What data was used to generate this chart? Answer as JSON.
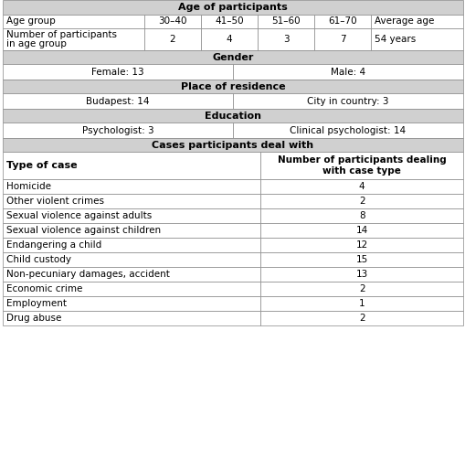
{
  "title": "Age of participants",
  "header_bg": "#d0d0d0",
  "white_bg": "#ffffff",
  "text_color": "#000000",
  "age_groups": [
    "30–40",
    "41–50",
    "51–60",
    "61–70",
    "Average age"
  ],
  "age_counts": [
    "2",
    "4",
    "3",
    "7",
    "54 years"
  ],
  "age_label_row1": "Number of participants",
  "age_label_row2": "in age group",
  "gender_label": "Gender",
  "gender_left": "Female: 13",
  "gender_right": "Male: 4",
  "residence_label": "Place of residence",
  "residence_left": "Budapest: 14",
  "residence_right": "City in country: 3",
  "education_label": "Education",
  "education_left": "Psychologist: 3",
  "education_right": "Clinical psychologist: 14",
  "cases_label": "Cases participants deal with",
  "col1_header": "Type of case",
  "col2_header_line1": "Number of participants dealing",
  "col2_header_line2": "with case type",
  "cases": [
    [
      "Homicide",
      "4"
    ],
    [
      "Other violent crimes",
      "2"
    ],
    [
      "Sexual violence against adults",
      "8"
    ],
    [
      "Sexual violence against children",
      "14"
    ],
    [
      "Endangering a child",
      "12"
    ],
    [
      "Child custody",
      "15"
    ],
    [
      "Non-pecuniary damages, accident",
      "13"
    ],
    [
      "Economic crime",
      "2"
    ],
    [
      "Employment",
      "1"
    ],
    [
      "Drug abuse",
      "2"
    ]
  ],
  "fig_w": 5.1,
  "fig_h": 5.13,
  "dpi": 100
}
